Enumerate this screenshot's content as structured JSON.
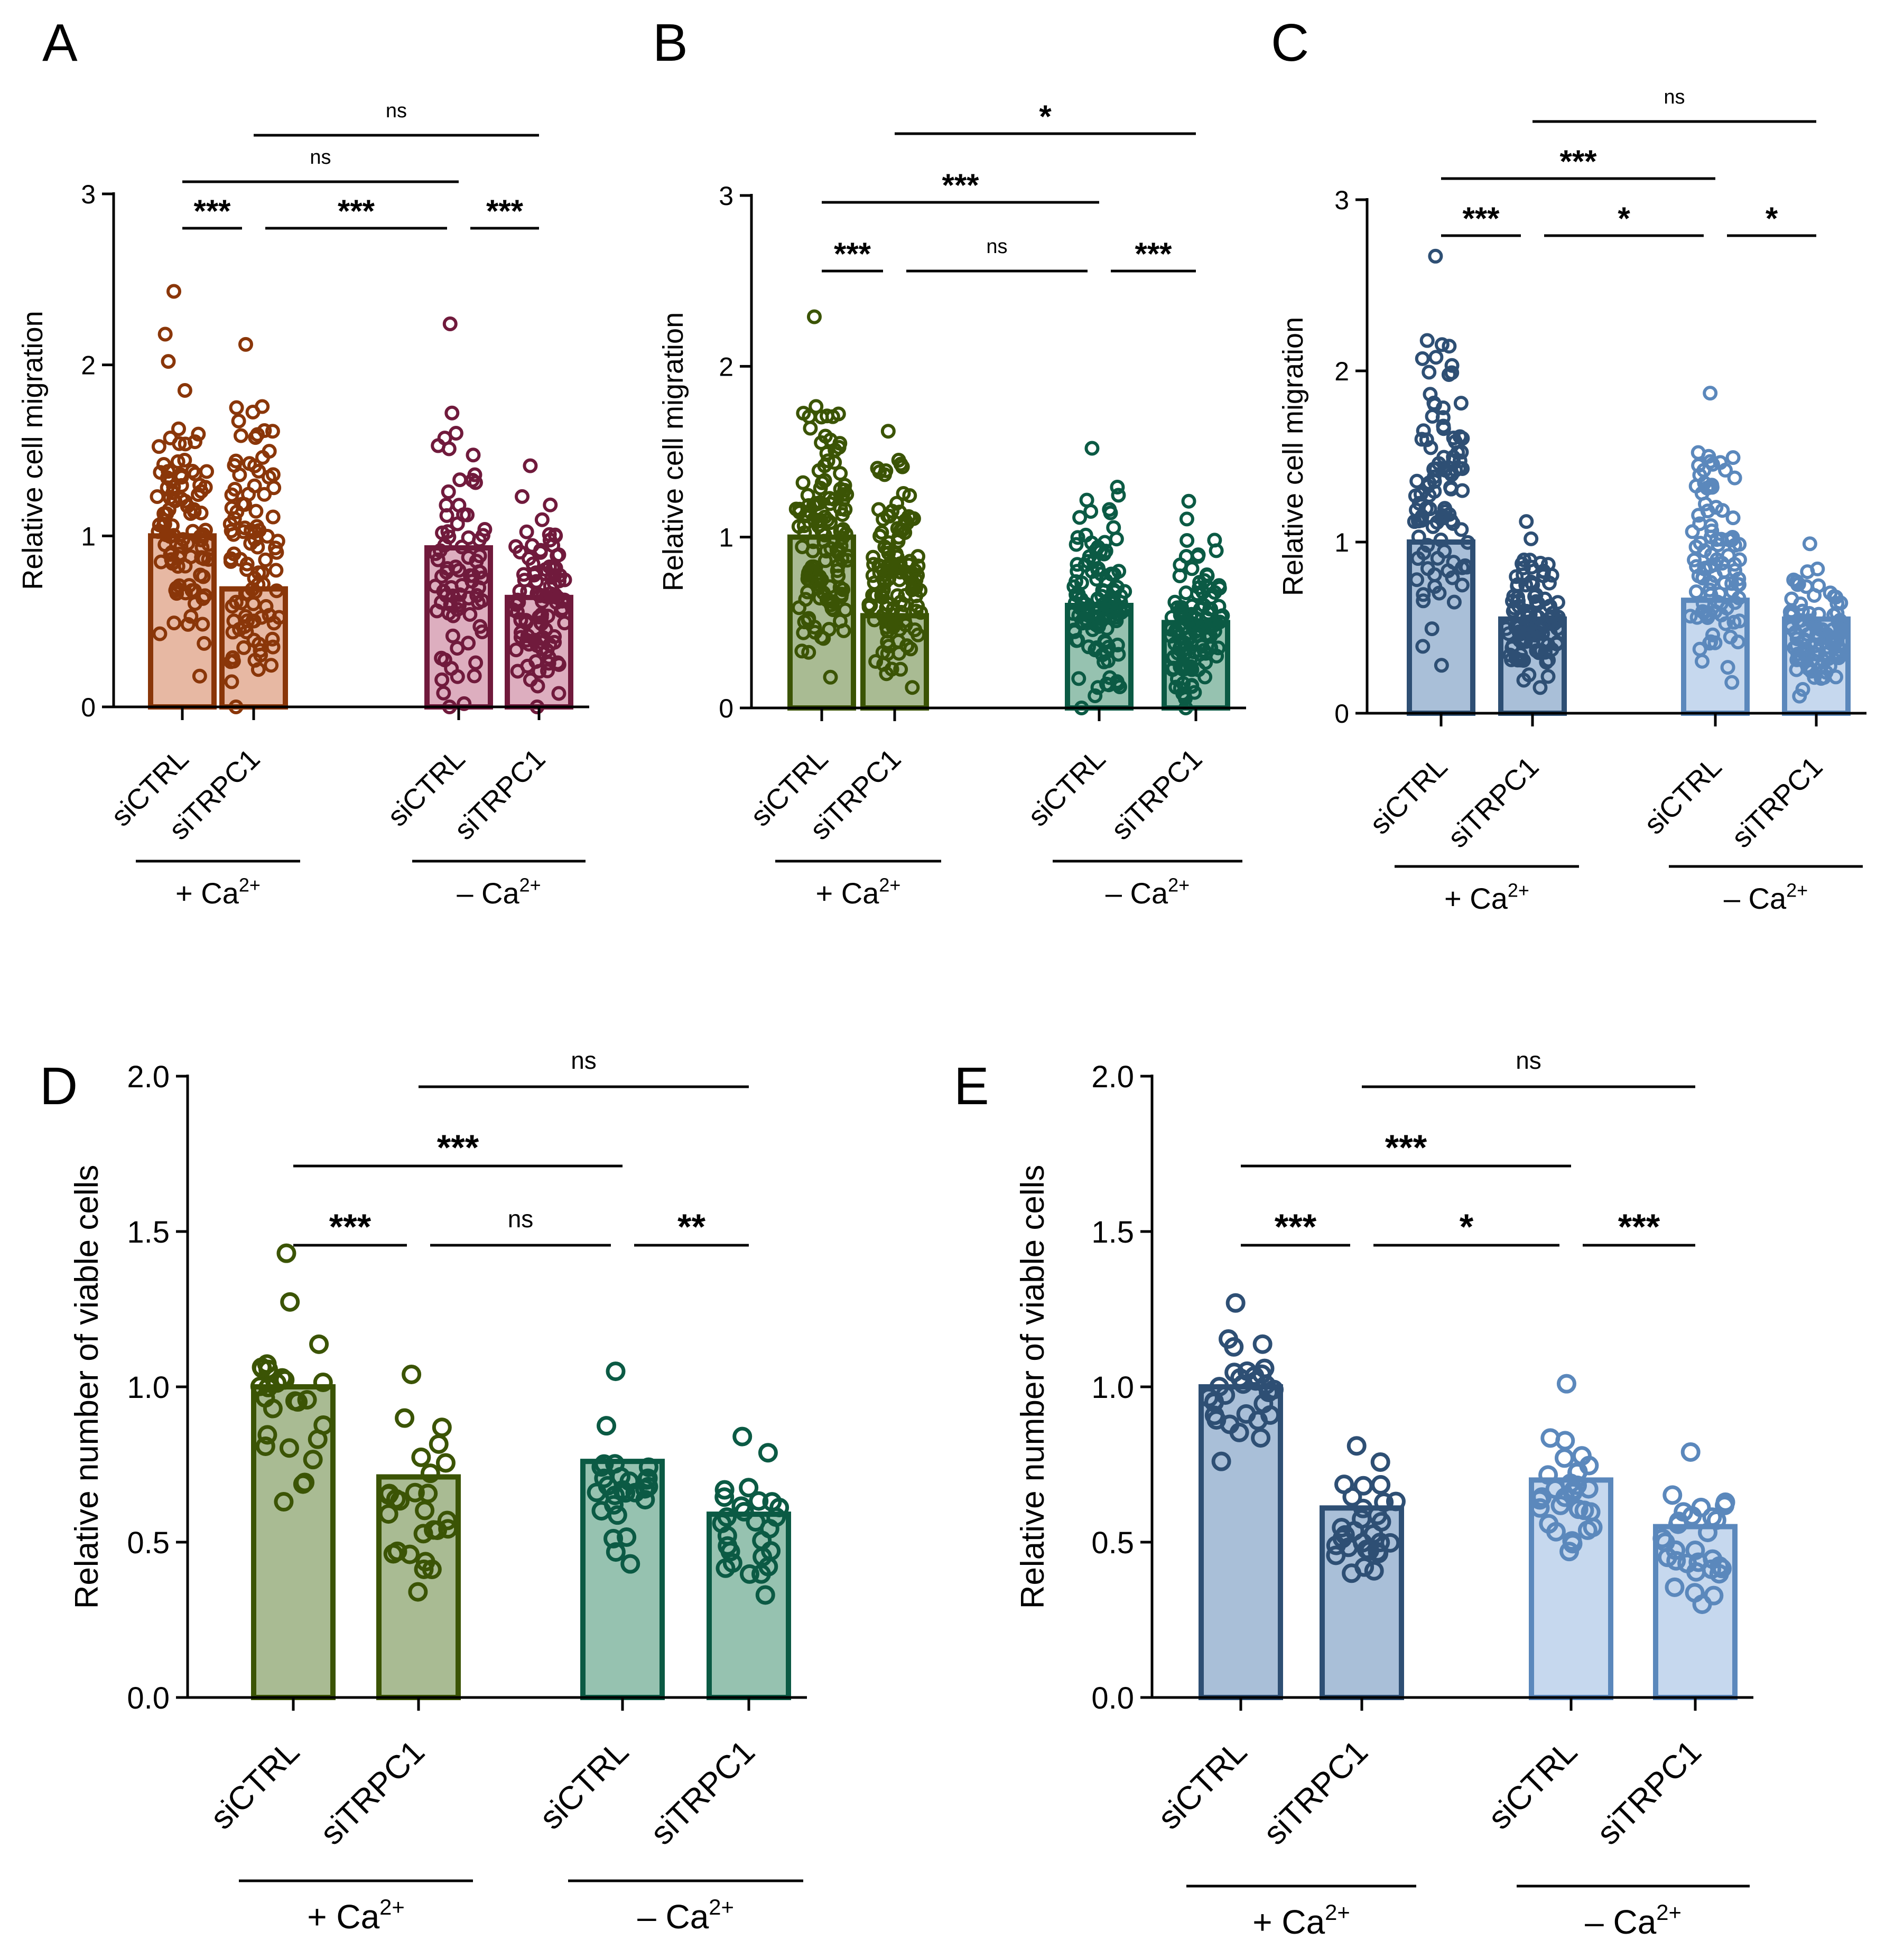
{
  "figure": {
    "panels": [
      {
        "id": "A",
        "letter": "A"
      },
      {
        "id": "B",
        "letter": "B"
      },
      {
        "id": "C",
        "letter": "C"
      },
      {
        "id": "D",
        "letter": "D"
      },
      {
        "id": "E",
        "letter": "E"
      }
    ]
  },
  "chart_data": [
    {
      "panel": "A",
      "type": "bar",
      "ylabel": "Relative cell migration",
      "ylim": [
        0,
        3
      ],
      "yticks": [
        0,
        1,
        2,
        3
      ],
      "ytick_labels": [
        "0",
        "1",
        "2",
        "3"
      ],
      "categories": [
        "siCTRL",
        "siTRPC1",
        "siCTRL",
        "siTRPC1"
      ],
      "groups": [
        {
          "label": "+ Ca",
          "sup": "2+"
        },
        {
          "label": "– Ca",
          "sup": "2+"
        }
      ],
      "bars": [
        {
          "category": "siCTRL",
          "group": "+ Ca2+",
          "mean": 1.0,
          "fill": "#e7b8a3",
          "stroke": "#8a3609"
        },
        {
          "category": "siTRPC1",
          "group": "+ Ca2+",
          "mean": 0.69,
          "fill": "#e7b8a3",
          "stroke": "#8a3609"
        },
        {
          "category": "siCTRL",
          "group": "– Ca2+",
          "mean": 0.93,
          "fill": "#ddaebf",
          "stroke": "#701a3c"
        },
        {
          "category": "siTRPC1",
          "group": "– Ca2+",
          "mean": 0.64,
          "fill": "#ddaebf",
          "stroke": "#701a3c"
        }
      ],
      "points_range": [
        [
          0.18,
          2.43
        ],
        [
          0.0,
          2.12
        ],
        [
          0.0,
          2.24
        ],
        [
          0.0,
          1.41
        ]
      ],
      "points_n": [
        100,
        100,
        80,
        100
      ],
      "comparisons": [
        {
          "from": 0,
          "to": 1,
          "label": "***",
          "level": 0
        },
        {
          "from": 1,
          "to": 2,
          "label": "***",
          "level": 0
        },
        {
          "from": 2,
          "to": 3,
          "label": "***",
          "level": 0
        },
        {
          "from": 0,
          "to": 2,
          "label": "ns",
          "level": 1
        },
        {
          "from": 1,
          "to": 3,
          "label": "ns",
          "level": 2
        }
      ]
    },
    {
      "panel": "B",
      "type": "bar",
      "ylabel": "Relative cell migration",
      "ylim": [
        0,
        3
      ],
      "yticks": [
        0,
        1,
        2,
        3
      ],
      "ytick_labels": [
        "0",
        "1",
        "2",
        "3"
      ],
      "categories": [
        "siCTRL",
        "siTRPC1",
        "siCTRL",
        "siTRPC1"
      ],
      "groups": [
        {
          "label": "+ Ca",
          "sup": "2+"
        },
        {
          "label": "– Ca",
          "sup": "2+"
        }
      ],
      "bars": [
        {
          "category": "siCTRL",
          "group": "+ Ca2+",
          "mean": 1.0,
          "fill": "#a9bb93",
          "stroke": "#3b5405"
        },
        {
          "category": "siTRPC1",
          "group": "+ Ca2+",
          "mean": 0.54,
          "fill": "#a9bb93",
          "stroke": "#3b5405"
        },
        {
          "category": "siCTRL",
          "group": "– Ca2+",
          "mean": 0.6,
          "fill": "#96c2b0",
          "stroke": "#0b5a44"
        },
        {
          "category": "siTRPC1",
          "group": "– Ca2+",
          "mean": 0.5,
          "fill": "#96c2b0",
          "stroke": "#0b5a44"
        }
      ],
      "points_range": [
        [
          0.18,
          2.29
        ],
        [
          0.12,
          1.62
        ],
        [
          0.0,
          1.52
        ],
        [
          0.0,
          1.21
        ]
      ],
      "points_n": [
        130,
        130,
        120,
        120
      ],
      "comparisons": [
        {
          "from": 0,
          "to": 1,
          "label": "***",
          "level": 0
        },
        {
          "from": 1,
          "to": 2,
          "label": "ns",
          "level": 0
        },
        {
          "from": 2,
          "to": 3,
          "label": "***",
          "level": 0
        },
        {
          "from": 0,
          "to": 2,
          "label": "***",
          "level": 1
        },
        {
          "from": 1,
          "to": 3,
          "label": "*",
          "level": 2
        }
      ]
    },
    {
      "panel": "C",
      "type": "bar",
      "ylabel": "Relative cell migration",
      "ylim": [
        0,
        3
      ],
      "yticks": [
        0,
        1,
        2,
        3
      ],
      "ytick_labels": [
        "0",
        "1",
        "2",
        "3"
      ],
      "categories": [
        "siCTRL",
        "siTRPC1",
        "siCTRL",
        "siTRPC1"
      ],
      "groups": [
        {
          "label": "+ Ca",
          "sup": "2+"
        },
        {
          "label": "– Ca",
          "sup": "2+"
        }
      ],
      "bars": [
        {
          "category": "siCTRL",
          "group": "+ Ca2+",
          "mean": 1.0,
          "fill": "#a9bfd8",
          "stroke": "#2e4f74"
        },
        {
          "category": "siTRPC1",
          "group": "+ Ca2+",
          "mean": 0.55,
          "fill": "#a9bfd8",
          "stroke": "#2e4f74"
        },
        {
          "category": "siCTRL",
          "group": "– Ca2+",
          "mean": 0.66,
          "fill": "#c6d8ee",
          "stroke": "#5b88bc"
        },
        {
          "category": "siTRPC1",
          "group": "– Ca2+",
          "mean": 0.55,
          "fill": "#c6d8ee",
          "stroke": "#5b88bc"
        }
      ],
      "points_range": [
        [
          0.28,
          2.67
        ],
        [
          0.15,
          1.12
        ],
        [
          0.18,
          1.87
        ],
        [
          0.1,
          0.99
        ]
      ],
      "points_n": [
        100,
        100,
        100,
        100
      ],
      "comparisons": [
        {
          "from": 0,
          "to": 1,
          "label": "***",
          "level": 0
        },
        {
          "from": 1,
          "to": 2,
          "label": "*",
          "level": 0
        },
        {
          "from": 2,
          "to": 3,
          "label": "*",
          "level": 0
        },
        {
          "from": 0,
          "to": 2,
          "label": "***",
          "level": 1
        },
        {
          "from": 1,
          "to": 3,
          "label": "ns",
          "level": 2
        }
      ]
    },
    {
      "panel": "D",
      "type": "bar",
      "ylabel": "Relative number of viable cells",
      "ylim": [
        0,
        2.0
      ],
      "yticks": [
        0,
        0.5,
        1.0,
        1.5,
        2.0
      ],
      "ytick_labels": [
        "0.0",
        "0.5",
        "1.0",
        "1.5",
        "2.0"
      ],
      "categories": [
        "siCTRL",
        "siTRPC1",
        "siCTRL",
        "siTRPC1"
      ],
      "groups": [
        {
          "label": "+ Ca",
          "sup": "2+"
        },
        {
          "label": "– Ca",
          "sup": "2+"
        }
      ],
      "bars": [
        {
          "category": "siCTRL",
          "group": "+ Ca2+",
          "mean": 1.0,
          "fill": "#a9bb93",
          "stroke": "#3b5405"
        },
        {
          "category": "siTRPC1",
          "group": "+ Ca2+",
          "mean": 0.71,
          "fill": "#a9bb93",
          "stroke": "#3b5405"
        },
        {
          "category": "siCTRL",
          "group": "– Ca2+",
          "mean": 0.76,
          "fill": "#96c2b0",
          "stroke": "#0b5a44"
        },
        {
          "category": "siTRPC1",
          "group": "– Ca2+",
          "mean": 0.59,
          "fill": "#96c2b0",
          "stroke": "#0b5a44"
        }
      ],
      "points_range": [
        [
          0.63,
          1.43
        ],
        [
          0.34,
          1.04
        ],
        [
          0.43,
          1.05
        ],
        [
          0.33,
          0.84
        ]
      ],
      "points_n": [
        27,
        27,
        27,
        27
      ],
      "comparisons": [
        {
          "from": 0,
          "to": 1,
          "label": "***",
          "level": 0
        },
        {
          "from": 1,
          "to": 2,
          "label": "ns",
          "level": 0
        },
        {
          "from": 2,
          "to": 3,
          "label": "**",
          "level": 0
        },
        {
          "from": 0,
          "to": 2,
          "label": "***",
          "level": 1
        },
        {
          "from": 1,
          "to": 3,
          "label": "ns",
          "level": 2
        }
      ]
    },
    {
      "panel": "E",
      "type": "bar",
      "ylabel": "Relative number of viable cells",
      "ylim": [
        0,
        2.0
      ],
      "yticks": [
        0,
        0.5,
        1.0,
        1.5,
        2.0
      ],
      "ytick_labels": [
        "0.0",
        "0.5",
        "1.0",
        "1.5",
        "2.0"
      ],
      "categories": [
        "siCTRL",
        "siTRPC1",
        "siCTRL",
        "siTRPC1"
      ],
      "groups": [
        {
          "label": "+ Ca",
          "sup": "2+"
        },
        {
          "label": "– Ca",
          "sup": "2+"
        }
      ],
      "bars": [
        {
          "category": "siCTRL",
          "group": "+ Ca2+",
          "mean": 1.0,
          "fill": "#a9bfd8",
          "stroke": "#2e4f74"
        },
        {
          "category": "siTRPC1",
          "group": "+ Ca2+",
          "mean": 0.61,
          "fill": "#a9bfd8",
          "stroke": "#2e4f74"
        },
        {
          "category": "siCTRL",
          "group": "– Ca2+",
          "mean": 0.7,
          "fill": "#c6d8ee",
          "stroke": "#5b88bc"
        },
        {
          "category": "siTRPC1",
          "group": "– Ca2+",
          "mean": 0.55,
          "fill": "#c6d8ee",
          "stroke": "#5b88bc"
        }
      ],
      "points_range": [
        [
          0.76,
          1.27
        ],
        [
          0.4,
          0.81
        ],
        [
          0.47,
          1.01
        ],
        [
          0.3,
          0.79
        ]
      ],
      "points_n": [
        30,
        30,
        30,
        30
      ],
      "comparisons": [
        {
          "from": 0,
          "to": 1,
          "label": "***",
          "level": 0
        },
        {
          "from": 1,
          "to": 2,
          "label": "*",
          "level": 0
        },
        {
          "from": 2,
          "to": 3,
          "label": "***",
          "level": 0
        },
        {
          "from": 0,
          "to": 2,
          "label": "***",
          "level": 1
        },
        {
          "from": 1,
          "to": 3,
          "label": "ns",
          "level": 2
        }
      ]
    }
  ]
}
